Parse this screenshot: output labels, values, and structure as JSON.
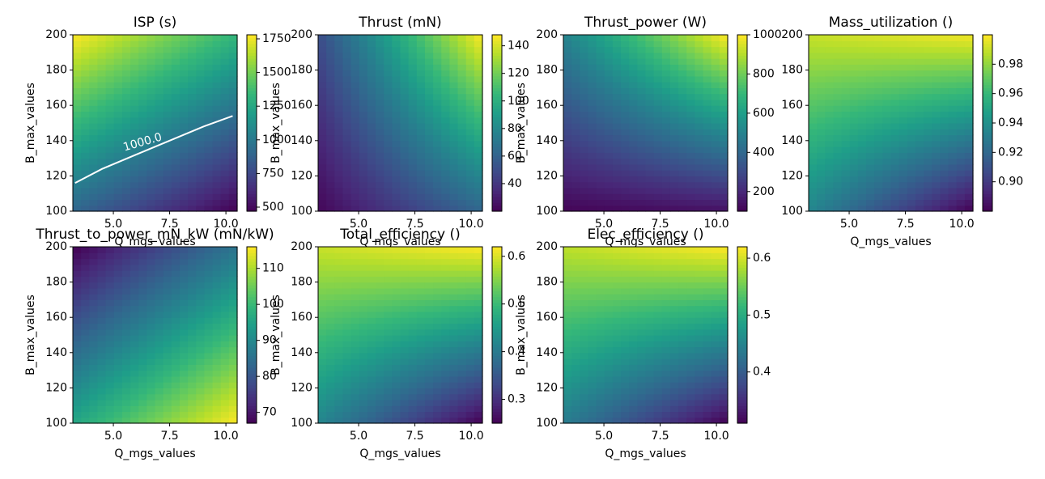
{
  "chart_data": [
    {
      "type": "heatmap",
      "title": "ISP (s)",
      "xlabel": "Q_mgs_values",
      "ylabel": "B_max_values",
      "xlim": [
        3.2,
        10.5
      ],
      "ylim": [
        100,
        200
      ],
      "xticks": [
        "5.0",
        "7.5",
        "10.0"
      ],
      "yticks": [
        "100",
        "120",
        "140",
        "160",
        "180",
        "200"
      ],
      "colorbar_range": [
        470,
        1780
      ],
      "colorbar_ticks": [
        "500",
        "750",
        "1000",
        "1250",
        "1500",
        "1750"
      ],
      "corner_values": {
        "x_min_y_min": 900,
        "x_max_y_min": 470,
        "x_min_y_max": 1780,
        "x_max_y_max": 1330
      },
      "contour": {
        "label": "1000.0",
        "points": [
          [
            3.3,
            116
          ],
          [
            4.5,
            124
          ],
          [
            6.0,
            132
          ],
          [
            7.5,
            140
          ],
          [
            9.0,
            148
          ],
          [
            10.3,
            154
          ]
        ]
      }
    },
    {
      "type": "heatmap",
      "title": "Thrust (mN)",
      "xlabel": "Q_mgs_values",
      "ylabel": "B_max_values",
      "xlim": [
        3.2,
        10.5
      ],
      "ylim": [
        100,
        200
      ],
      "xticks": [
        "5.0",
        "7.5",
        "10.0"
      ],
      "yticks": [
        "100",
        "120",
        "140",
        "160",
        "180",
        "200"
      ],
      "colorbar_range": [
        20,
        148
      ],
      "colorbar_ticks": [
        "40",
        "60",
        "80",
        "100",
        "120",
        "140"
      ],
      "corner_values": {
        "x_min_y_min": 22,
        "x_max_y_min": 62,
        "x_min_y_max": 50,
        "x_max_y_max": 148
      }
    },
    {
      "type": "heatmap",
      "title": "Thrust_power (W)",
      "xlabel": "Q_mgs_values",
      "ylabel": "B_max_values",
      "xlim": [
        3.2,
        10.5
      ],
      "ylim": [
        100,
        200
      ],
      "xticks": [
        "5.0",
        "7.5",
        "10.0"
      ],
      "yticks": [
        "100",
        "120",
        "140",
        "160",
        "180",
        "200"
      ],
      "colorbar_range": [
        100,
        1000
      ],
      "colorbar_ticks": [
        "200",
        "400",
        "600",
        "800",
        "1000"
      ],
      "corner_values": {
        "x_min_y_min": 110,
        "x_max_y_min": 140,
        "x_min_y_max": 500,
        "x_max_y_max": 1000
      }
    },
    {
      "type": "heatmap",
      "title": "Mass_utilization ()",
      "xlabel": "Q_mgs_values",
      "ylabel": "",
      "xlim": [
        3.2,
        10.5
      ],
      "ylim": [
        100,
        200
      ],
      "xticks": [
        "5.0",
        "7.5",
        "10.0"
      ],
      "yticks": [
        "100",
        "120",
        "140",
        "160",
        "180",
        "200"
      ],
      "colorbar_range": [
        0.88,
        1.0
      ],
      "colorbar_ticks": [
        "0.90",
        "0.92",
        "0.94",
        "0.96",
        "0.98"
      ],
      "corner_values": {
        "x_min_y_min": 0.935,
        "x_max_y_min": 0.88,
        "x_min_y_max": 0.99,
        "x_max_y_max": 0.998
      }
    },
    {
      "type": "heatmap",
      "title": "Thrust_to_power_mN_kW (mN/kW)",
      "xlabel": "Q_mgs_values",
      "ylabel": "B_max_values",
      "xlim": [
        3.2,
        10.5
      ],
      "ylim": [
        100,
        200
      ],
      "xticks": [
        "5.0",
        "7.5",
        "10.0"
      ],
      "yticks": [
        "100",
        "120",
        "140",
        "160",
        "180",
        "200"
      ],
      "colorbar_range": [
        67,
        116
      ],
      "colorbar_ticks": [
        "70",
        "80",
        "90",
        "100",
        "110"
      ],
      "corner_values": {
        "x_min_y_min": 96,
        "x_max_y_min": 116,
        "x_min_y_max": 67,
        "x_max_y_max": 86
      }
    },
    {
      "type": "heatmap",
      "title": "Total_efficiency ()",
      "xlabel": "Q_mgs_values",
      "ylabel": "B_max_values",
      "xlim": [
        3.2,
        10.5
      ],
      "ylim": [
        100,
        200
      ],
      "xticks": [
        "5.0",
        "7.5",
        "10.0"
      ],
      "yticks": [
        "100",
        "120",
        "140",
        "160",
        "180",
        "200"
      ],
      "colorbar_range": [
        0.25,
        0.62
      ],
      "colorbar_ticks": [
        "0.3",
        "0.4",
        "0.5",
        "0.6"
      ],
      "corner_values": {
        "x_min_y_min": 0.42,
        "x_max_y_min": 0.25,
        "x_min_y_max": 0.59,
        "x_max_y_max": 0.62
      }
    },
    {
      "type": "heatmap",
      "title": "Elec_efficiency ()",
      "xlabel": "Q_mgs_values",
      "ylabel": "B_max_values",
      "xlim": [
        3.2,
        10.5
      ],
      "ylim": [
        100,
        200
      ],
      "xticks": [
        "5.0",
        "7.5",
        "10.0"
      ],
      "yticks": [
        "100",
        "120",
        "140",
        "160",
        "180",
        "200"
      ],
      "colorbar_range": [
        0.31,
        0.62
      ],
      "colorbar_ticks": [
        "0.4",
        "0.5",
        "0.6"
      ],
      "corner_values": {
        "x_min_y_min": 0.44,
        "x_max_y_min": 0.31,
        "x_min_y_max": 0.59,
        "x_max_y_max": 0.62
      }
    }
  ]
}
